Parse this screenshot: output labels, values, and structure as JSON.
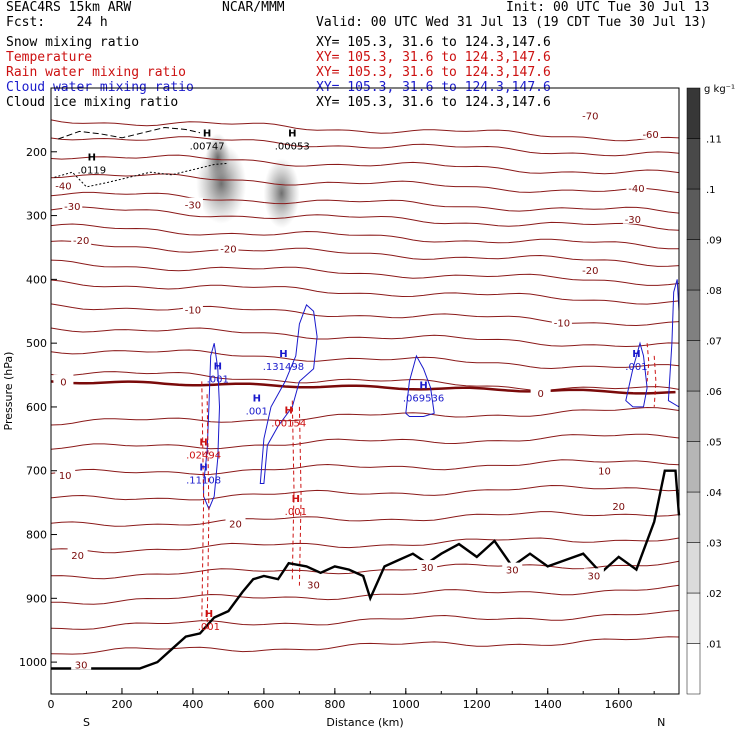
{
  "header": {
    "model": "SEAC4RS 15km ARW",
    "org": "NCAR/MMM",
    "init": "Init: 00 UTC Tue 30 Jul 13",
    "fcst": "Fcst:    24 h",
    "valid": "Valid: 00 UTC Wed 31 Jul 13 (19 CDT Tue 30 Jul 13)"
  },
  "fields": [
    {
      "name": "Snow mixing ratio",
      "xy": "XY= 105.3, 31.6 to 124.3,147.6",
      "color": "#000000"
    },
    {
      "name": "Temperature",
      "xy": "XY= 105.3, 31.6 to 124.3,147.6",
      "color": "#cc1111"
    },
    {
      "name": "Rain water mixing ratio",
      "xy": "XY= 105.3, 31.6 to 124.3,147.6",
      "color": "#cc1111"
    },
    {
      "name": "Cloud water mixing ratio",
      "xy": "XY= 105.3, 31.6 to 124.3,147.6",
      "color": "#1a1acc"
    },
    {
      "name": "Cloud ice mixing ratio",
      "xy": "XY= 105.3, 31.6 to 124.3,147.6",
      "color": "#000000"
    }
  ],
  "chart_data": {
    "type": "contour",
    "xlabel": "Distance (km)",
    "ylabel": "Pressure (hPa)",
    "xlim": [
      0,
      1770
    ],
    "ylim": [
      1050,
      100
    ],
    "x_ticks": [
      0,
      200,
      400,
      600,
      800,
      1000,
      1200,
      1400,
      1600
    ],
    "y_ticks": [
      200,
      300,
      400,
      500,
      600,
      700,
      800,
      900,
      1000
    ],
    "endpoints": {
      "left": "S",
      "right": "N"
    },
    "colorbar": {
      "unit": "g kg⁻¹",
      "ticks": [
        ".01",
        ".02",
        ".03",
        ".04",
        ".05",
        ".06",
        ".07",
        ".08",
        ".09",
        ".1",
        ".11"
      ],
      "values": [
        0.01,
        0.02,
        0.03,
        0.04,
        0.05,
        0.06,
        0.07,
        0.08,
        0.09,
        0.1,
        0.11
      ]
    },
    "temperature_labels": [
      {
        "text": "-70",
        "x": 1520,
        "p": 143
      },
      {
        "text": "-60",
        "x": 1690,
        "p": 172
      },
      {
        "text": "-40",
        "x": 35,
        "p": 253
      },
      {
        "text": "-40",
        "x": 1650,
        "p": 257
      },
      {
        "text": "-30",
        "x": 60,
        "p": 285
      },
      {
        "text": "-30",
        "x": 400,
        "p": 283
      },
      {
        "text": "-30",
        "x": 1640,
        "p": 305
      },
      {
        "text": "-20",
        "x": 85,
        "p": 338
      },
      {
        "text": "-20",
        "x": 500,
        "p": 352
      },
      {
        "text": "-20",
        "x": 1520,
        "p": 385
      },
      {
        "text": "-10",
        "x": 400,
        "p": 447
      },
      {
        "text": "-10",
        "x": 1440,
        "p": 468
      },
      {
        "text": "0",
        "x": 35,
        "p": 560
      },
      {
        "text": "0",
        "x": 1380,
        "p": 578
      },
      {
        "text": "10",
        "x": 40,
        "p": 707
      },
      {
        "text": "10",
        "x": 1560,
        "p": 700
      },
      {
        "text": "20",
        "x": 520,
        "p": 783
      },
      {
        "text": "20",
        "x": 1600,
        "p": 755
      },
      {
        "text": "20",
        "x": 75,
        "p": 832
      },
      {
        "text": "30",
        "x": 740,
        "p": 878
      },
      {
        "text": "30",
        "x": 1060,
        "p": 851
      },
      {
        "text": "30",
        "x": 1300,
        "p": 855
      },
      {
        "text": "30",
        "x": 1530,
        "p": 864
      },
      {
        "text": "30",
        "x": 85,
        "p": 1004
      }
    ],
    "maxima_labels": [
      {
        "text": ".0119",
        "x": 115,
        "p": 229,
        "color": "black"
      },
      {
        "text": ".00747",
        "x": 440,
        "p": 192,
        "color": "black"
      },
      {
        "text": ".00053",
        "x": 680,
        "p": 192,
        "color": "black"
      },
      {
        "text": ".131498",
        "x": 655,
        "p": 537,
        "color": "blue"
      },
      {
        "text": ".069536",
        "x": 1050,
        "p": 587,
        "color": "blue"
      },
      {
        "text": ".001",
        "x": 580,
        "p": 607,
        "color": "blue"
      },
      {
        "text": ".001",
        "x": 470,
        "p": 557,
        "color": "blue"
      },
      {
        "text": ".001",
        "x": 1650,
        "p": 537,
        "color": "blue"
      },
      {
        "text": ".11108",
        "x": 430,
        "p": 715,
        "color": "blue"
      },
      {
        "text": ".00154",
        "x": 670,
        "p": 626,
        "color": "red"
      },
      {
        "text": ".02494",
        "x": 430,
        "p": 676,
        "color": "red"
      },
      {
        "text": ".001",
        "x": 690,
        "p": 765,
        "color": "red"
      },
      {
        "text": ".001",
        "x": 445,
        "p": 945,
        "color": "red"
      }
    ]
  }
}
